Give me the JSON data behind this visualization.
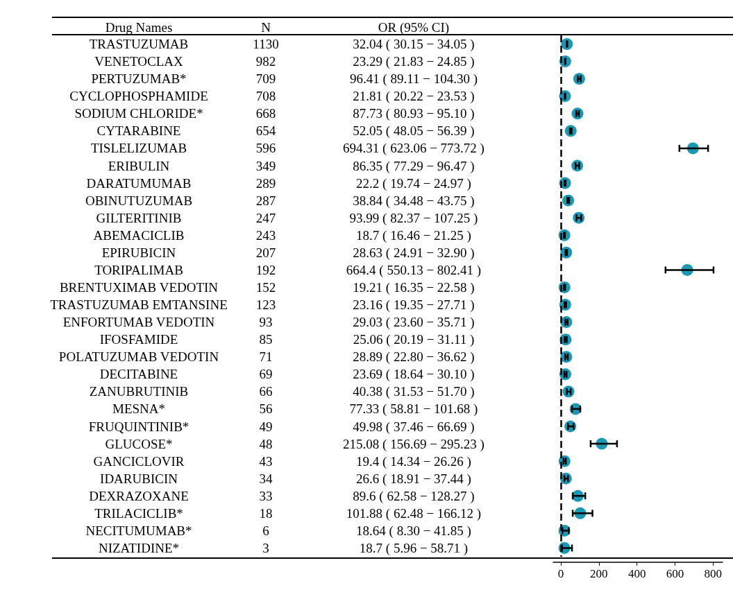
{
  "chart_data": {
    "type": "scatter",
    "orientation": "horizontal",
    "marker": "circle",
    "grid": false,
    "y_categories": [
      "TRASTUZUMAB",
      "VENETOCLAX",
      "PERTUZUMAB*",
      "CYCLOPHOSPHAMIDE",
      "SODIUM CHLORIDE*",
      "CYTARABINE",
      "TISLELIZUMAB",
      "ERIBULIN",
      "DARATUMUMAB",
      "OBINUTUZUMAB",
      "GILTERITINIB",
      "ABEMACICLIB",
      "EPIRUBICIN",
      "TORIPALIMAB",
      "BRENTUXIMAB VEDOTIN",
      "TRASTUZUMAB EMTANSINE",
      "ENFORTUMAB VEDOTIN",
      "IFOSFAMIDE",
      "POLATUZUMAB VEDOTIN",
      "DECITABINE",
      "ZANUBRUTINIB",
      "MESNA*",
      "FRUQUINTINIB*",
      "GLUCOSE*",
      "GANCICLOVIR",
      "IDARUBICIN",
      "DEXRAZOXANE",
      "TRILACICLIB*",
      "NECITUMUMAB*",
      "NIZATIDINE*"
    ],
    "series": [
      {
        "color": "#1b98b4",
        "values": [
          32.04,
          23.29,
          96.41,
          21.81,
          87.73,
          52.05,
          694.31,
          86.35,
          22.2,
          38.84,
          93.99,
          18.7,
          28.63,
          664.4,
          19.21,
          23.16,
          29.03,
          25.06,
          28.89,
          23.69,
          40.38,
          77.33,
          49.98,
          215.08,
          19.4,
          26.6,
          89.6,
          101.88,
          18.64,
          18.7
        ],
        "errors": [
          [
            30.15,
            34.05
          ],
          [
            21.83,
            24.85
          ],
          [
            89.11,
            104.3
          ],
          [
            20.22,
            23.53
          ],
          [
            80.93,
            95.1
          ],
          [
            48.05,
            56.39
          ],
          [
            623.06,
            773.72
          ],
          [
            77.29,
            96.47
          ],
          [
            19.74,
            24.97
          ],
          [
            34.48,
            43.75
          ],
          [
            82.37,
            107.25
          ],
          [
            16.46,
            21.25
          ],
          [
            24.91,
            32.9
          ],
          [
            550.13,
            802.41
          ],
          [
            16.35,
            22.58
          ],
          [
            19.35,
            27.71
          ],
          [
            23.6,
            35.71
          ],
          [
            20.19,
            31.11
          ],
          [
            22.8,
            36.62
          ],
          [
            18.64,
            30.1
          ],
          [
            31.53,
            51.7
          ],
          [
            58.81,
            101.68
          ],
          [
            37.46,
            66.69
          ],
          [
            156.69,
            295.23
          ],
          [
            14.34,
            26.26
          ],
          [
            18.91,
            37.44
          ],
          [
            62.58,
            128.27
          ],
          [
            62.48,
            166.12
          ],
          [
            8.3,
            41.85
          ],
          [
            5.96,
            58.71
          ]
        ]
      }
    ],
    "xlim": [
      -40,
      850
    ],
    "xticks": [
      0,
      200,
      400,
      600,
      800
    ],
    "ref_lines": [
      {
        "axis": "x",
        "value": 1,
        "label": null,
        "color": "#000000",
        "line_style": "dashed"
      }
    ],
    "annotations": [
      "Drug Names",
      "N",
      "OR (95% CI)",
      "1130",
      "982",
      "709",
      "708",
      "668",
      "654",
      "596",
      "349",
      "289",
      "287",
      "247",
      "243",
      "207",
      "192",
      "152",
      "123",
      "93",
      "85",
      "71",
      "69",
      "66",
      "56",
      "49",
      "48",
      "43",
      "34",
      "33",
      "18",
      "6",
      "3",
      "32.04 ( 30.15 − 34.05 )",
      "23.29 ( 21.83 − 24.85 )",
      "96.41 ( 89.11 − 104.30 )",
      "21.81 ( 20.22 − 23.53 )",
      "87.73 ( 80.93 − 95.10 )",
      "52.05 ( 48.05 − 56.39 )",
      "694.31 ( 623.06 − 773.72 )",
      "86.35 ( 77.29 − 96.47 )",
      "22.2 ( 19.74 − 24.97 )",
      "38.84 ( 34.48 − 43.75 )",
      "93.99 ( 82.37 − 107.25 )",
      "18.7 ( 16.46 − 21.25 )",
      "28.63 ( 24.91 − 32.90 )",
      "664.4 ( 550.13 − 802.41 )",
      "19.21 ( 16.35 − 22.58 )",
      "23.16 ( 19.35 − 27.71 )",
      "29.03 ( 23.60 − 35.71 )",
      "25.06 ( 20.19 − 31.11 )",
      "28.89 ( 22.80 − 36.62 )",
      "23.69 ( 18.64 − 30.10 )",
      "40.38 ( 31.53 − 51.70 )",
      "77.33 ( 58.81 − 101.68 )",
      "49.98 ( 37.46 − 66.69 )",
      "215.08 ( 156.69 − 295.23 )",
      "19.4 ( 14.34 − 26.26 )",
      "26.6 ( 18.91 − 37.44 )",
      "89.6 ( 62.58 − 128.27 )",
      "101.88 ( 62.48 − 166.12 )",
      "18.64 ( 8.30 − 41.85 )",
      "18.7 ( 5.96 − 58.71 )"
    ]
  }
}
